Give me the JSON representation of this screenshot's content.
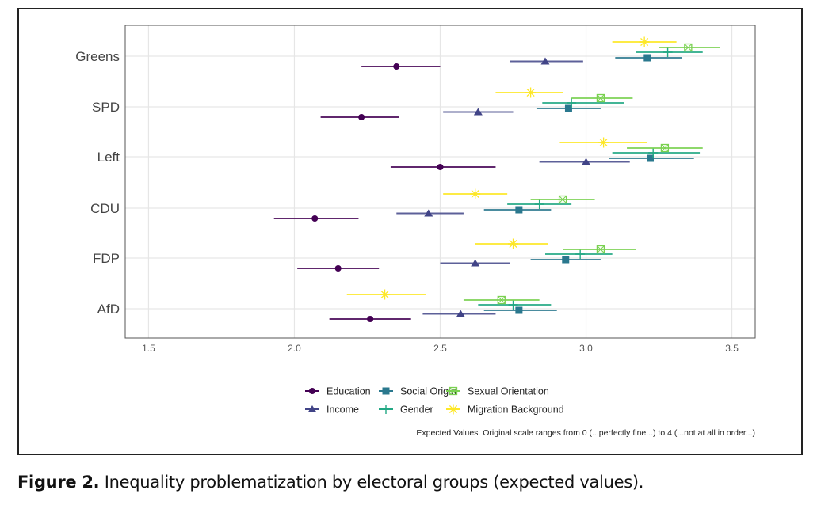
{
  "caption": {
    "label": "Figure 2.",
    "text": "Inequality problematization by electoral groups (expected values)."
  },
  "chart_data": {
    "type": "scatter",
    "subtype": "dot-and-whisker",
    "title": "",
    "xlabel": "",
    "ylabel": "",
    "xlim": [
      1.42,
      3.58
    ],
    "xticks": [
      1.5,
      2.0,
      2.5,
      3.0,
      3.5
    ],
    "xtick_labels": [
      "1.5",
      "2.0",
      "2.5",
      "3.0",
      "3.5"
    ],
    "grid": true,
    "legend_position": "bottom",
    "note": "Expected Values. Original scale ranges from 0 (...perfectly fine...) to 4 (...not at all in order...)",
    "categories": [
      "Greens",
      "SPD",
      "Left",
      "CDU",
      "FDP",
      "AfD"
    ],
    "series": [
      {
        "name": "Education",
        "color": "#440154",
        "marker": "circle",
        "values": [
          2.35,
          2.23,
          2.5,
          2.07,
          2.15,
          2.26
        ],
        "lower": [
          2.23,
          2.09,
          2.33,
          1.93,
          2.01,
          2.12
        ],
        "upper": [
          2.5,
          2.36,
          2.69,
          2.22,
          2.29,
          2.4
        ]
      },
      {
        "name": "Income",
        "color": "#414487",
        "marker": "triangle",
        "values": [
          2.86,
          2.63,
          3.0,
          2.46,
          2.62,
          2.57
        ],
        "lower": [
          2.74,
          2.51,
          2.84,
          2.35,
          2.5,
          2.44
        ],
        "upper": [
          2.99,
          2.75,
          3.15,
          2.58,
          2.74,
          2.69
        ]
      },
      {
        "name": "Social Origin",
        "color": "#2A788E",
        "marker": "square",
        "values": [
          3.21,
          2.94,
          3.22,
          2.77,
          2.93,
          2.77
        ],
        "lower": [
          3.1,
          2.83,
          3.08,
          2.65,
          2.81,
          2.65
        ],
        "upper": [
          3.33,
          3.05,
          3.37,
          2.88,
          3.05,
          2.9
        ]
      },
      {
        "name": "Gender",
        "color": "#22A884",
        "marker": "plus",
        "values": [
          3.28,
          2.95,
          3.23,
          2.84,
          2.98,
          2.75
        ],
        "lower": [
          3.17,
          2.85,
          3.09,
          2.73,
          2.86,
          2.63
        ],
        "upper": [
          3.4,
          3.13,
          3.39,
          2.95,
          3.09,
          2.88
        ]
      },
      {
        "name": "Sexual Orientation",
        "color": "#7AD151",
        "marker": "square-cross",
        "values": [
          3.35,
          3.05,
          3.27,
          2.92,
          3.05,
          2.71
        ],
        "lower": [
          3.25,
          2.95,
          3.14,
          2.81,
          2.92,
          2.58
        ],
        "upper": [
          3.46,
          3.16,
          3.4,
          3.03,
          3.17,
          2.84
        ]
      },
      {
        "name": "Migration Background",
        "color": "#FDE725",
        "marker": "asterisk",
        "values": [
          3.2,
          2.81,
          3.06,
          2.62,
          2.75,
          2.31
        ],
        "lower": [
          3.09,
          2.69,
          2.91,
          2.51,
          2.62,
          2.18
        ],
        "upper": [
          3.31,
          2.92,
          3.21,
          2.73,
          2.87,
          2.45
        ]
      }
    ]
  }
}
